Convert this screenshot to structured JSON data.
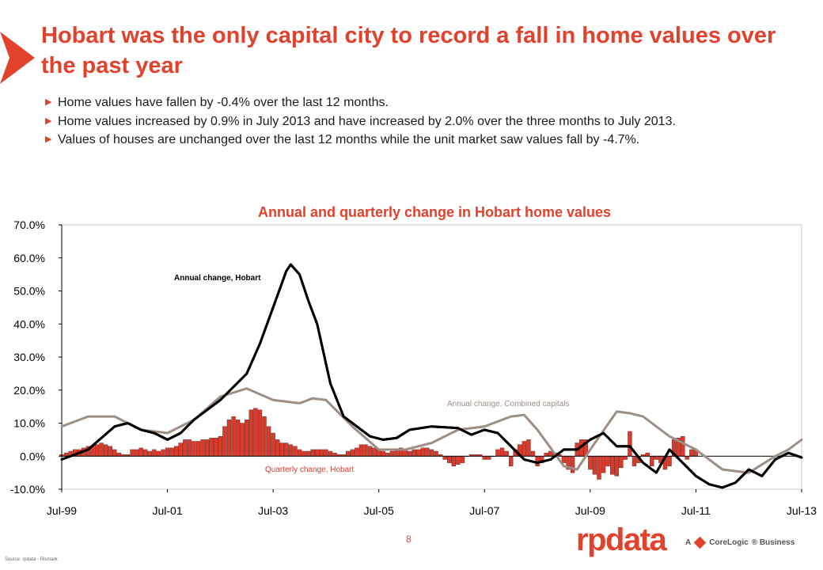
{
  "slide": {
    "title": "Hobart was the only capital city to record a fall in home values over the past year",
    "bullets": [
      "Home values have fallen by -0.4% over the last 12 months.",
      "Home values increased by 0.9% in July 2013 and have increased by 2.0% over the three months to July 2013.",
      "Values of houses are unchanged over the last 12 months while the unit market saw values fall by -4.7%."
    ],
    "bullet_marker": "▶",
    "page_number": "8",
    "source": "Source: rpdata - Rismark",
    "logo_text": "rpdata",
    "logo_tag_prefix": "A",
    "logo_tag_brand": "CoreLogic",
    "logo_tag_suffix": "® Business"
  },
  "colors": {
    "accent": "#e2412c",
    "hobart_annual": "#000000",
    "combined_annual": "#9e8e86",
    "quarterly_bar": "#d93a2b",
    "axis": "#000000"
  },
  "chart_data": {
    "type": "line+bar",
    "title": "Annual and quarterly change in Hobart home values",
    "xlabel": "",
    "ylabel": "",
    "y_unit": "%",
    "ylim": [
      -10,
      70
    ],
    "y_ticks": [
      -10,
      0,
      10,
      20,
      30,
      40,
      50,
      60,
      70
    ],
    "y_tick_labels": [
      "-10.0%",
      "0.0%",
      "10.0%",
      "20.0%",
      "30.0%",
      "40.0%",
      "50.0%",
      "60.0%",
      "70.0%"
    ],
    "x_start": "Jul-99",
    "x_end": "Jul-13",
    "x_tick_labels": [
      "Jul-99",
      "Jul-01",
      "Jul-03",
      "Jul-05",
      "Jul-07",
      "Jul-09",
      "Jul-11",
      "Jul-13"
    ],
    "grid": false,
    "annotations": [
      "Annual change, Hobart",
      "Annual change, Combined capitals",
      "Quarterly change, Hobart"
    ],
    "series": [
      {
        "name": "Annual change, Hobart",
        "kind": "line",
        "color": "#000000",
        "points": [
          [
            "Jul-99",
            -1.0
          ],
          [
            "Jan-00",
            2.0
          ],
          [
            "Jul-00",
            9.0
          ],
          [
            "Oct-00",
            10.0
          ],
          [
            "Jan-01",
            8.0
          ],
          [
            "Apr-01",
            7.0
          ],
          [
            "Jul-01",
            5.0
          ],
          [
            "Oct-01",
            7.0
          ],
          [
            "Jan-02",
            11.0
          ],
          [
            "Jul-02",
            17.0
          ],
          [
            "Jan-03",
            25.0
          ],
          [
            "Apr-03",
            34.0
          ],
          [
            "Jul-03",
            45.0
          ],
          [
            "Oct-03",
            56.0
          ],
          [
            "Nov-03",
            58.0
          ],
          [
            "Jan-04",
            55.0
          ],
          [
            "Mar-04",
            47.0
          ],
          [
            "May-04",
            40.0
          ],
          [
            "Aug-04",
            22.0
          ],
          [
            "Nov-04",
            12.0
          ],
          [
            "Feb-05",
            9.0
          ],
          [
            "May-05",
            6.0
          ],
          [
            "Aug-05",
            5.0
          ],
          [
            "Nov-05",
            5.5
          ],
          [
            "Feb-06",
            8.0
          ],
          [
            "Jul-06",
            9.0
          ],
          [
            "Jan-07",
            8.5
          ],
          [
            "Apr-07",
            6.5
          ],
          [
            "Jul-07",
            8.0
          ],
          [
            "Oct-07",
            7.0
          ],
          [
            "Jan-08",
            3.0
          ],
          [
            "Apr-08",
            -1.0
          ],
          [
            "Jul-08",
            -2.0
          ],
          [
            "Oct-08",
            -1.0
          ],
          [
            "Jan-09",
            2.0
          ],
          [
            "Apr-09",
            2.0
          ],
          [
            "Jul-09",
            5.0
          ],
          [
            "Oct-09",
            7.0
          ],
          [
            "Jan-10",
            3.0
          ],
          [
            "Apr-10",
            3.0
          ],
          [
            "Jul-10",
            -2.0
          ],
          [
            "Oct-10",
            -5.0
          ],
          [
            "Jan-11",
            2.0
          ],
          [
            "Apr-11",
            -2.0
          ],
          [
            "Jul-11",
            -6.0
          ],
          [
            "Oct-11",
            -8.5
          ],
          [
            "Jan-12",
            -9.5
          ],
          [
            "Apr-12",
            -8.0
          ],
          [
            "Jul-12",
            -4.0
          ],
          [
            "Oct-12",
            -6.0
          ],
          [
            "Jan-13",
            -1.0
          ],
          [
            "Apr-13",
            1.0
          ],
          [
            "Jul-13",
            -0.4
          ]
        ]
      },
      {
        "name": "Annual change, Combined capitals",
        "kind": "line",
        "color": "#9e8e86",
        "points": [
          [
            "Jul-99",
            9.0
          ],
          [
            "Jan-00",
            12.0
          ],
          [
            "Jul-00",
            12.0
          ],
          [
            "Jan-01",
            8.0
          ],
          [
            "Jul-01",
            7.0
          ],
          [
            "Jan-02",
            11.0
          ],
          [
            "Jul-02",
            18.0
          ],
          [
            "Jan-03",
            20.5
          ],
          [
            "Jul-03",
            17.0
          ],
          [
            "Jan-04",
            16.0
          ],
          [
            "Apr-04",
            17.5
          ],
          [
            "Jul-04",
            17.0
          ],
          [
            "Jan-05",
            9.0
          ],
          [
            "Jul-05",
            2.0
          ],
          [
            "Jan-06",
            2.0
          ],
          [
            "Jul-06",
            4.0
          ],
          [
            "Jan-07",
            8.0
          ],
          [
            "Jul-07",
            9.0
          ],
          [
            "Jan-08",
            12.0
          ],
          [
            "Apr-08",
            12.5
          ],
          [
            "Jul-08",
            8.0
          ],
          [
            "Jan-09",
            -3.0
          ],
          [
            "Apr-09",
            -4.0
          ],
          [
            "Jul-09",
            2.0
          ],
          [
            "Jan-10",
            13.5
          ],
          [
            "Apr-10",
            13.0
          ],
          [
            "Jul-10",
            12.0
          ],
          [
            "Jan-11",
            6.0
          ],
          [
            "Jul-11",
            2.0
          ],
          [
            "Jan-12",
            -4.0
          ],
          [
            "Jul-12",
            -5.0
          ],
          [
            "Jan-13",
            0.0
          ],
          [
            "Apr-13",
            2.0
          ],
          [
            "Jul-13",
            5.0
          ]
        ]
      },
      {
        "name": "Quarterly change, Hobart",
        "kind": "bar",
        "color": "#d93a2b",
        "x_start": "Jul-99",
        "step": "1 month",
        "values": [
          0.5,
          1.0,
          1.5,
          2.0,
          2.0,
          2.5,
          3.0,
          3.0,
          3.5,
          4.0,
          3.5,
          3.0,
          2.0,
          1.0,
          0.5,
          0.5,
          2.0,
          2.0,
          2.5,
          2.0,
          1.5,
          2.0,
          1.5,
          2.0,
          2.5,
          2.5,
          3.0,
          4.0,
          5.0,
          5.0,
          4.5,
          4.5,
          5.0,
          5.0,
          5.5,
          5.5,
          6.0,
          9.0,
          11.0,
          12.0,
          11.0,
          10.0,
          11.0,
          14.0,
          14.5,
          14.0,
          12.0,
          9.0,
          7.0,
          5.0,
          4.0,
          4.0,
          3.5,
          3.0,
          2.0,
          1.5,
          1.5,
          2.0,
          2.0,
          2.0,
          2.0,
          1.5,
          1.0,
          0.5,
          0.5,
          1.5,
          2.0,
          2.5,
          3.5,
          3.5,
          3.0,
          2.5,
          2.0,
          1.5,
          1.0,
          1.5,
          2.0,
          2.5,
          2.0,
          1.5,
          2.0,
          2.0,
          2.5,
          2.5,
          2.0,
          1.5,
          0.5,
          -1.0,
          -2.0,
          -3.0,
          -2.5,
          -2.0,
          0.0,
          0.5,
          0.5,
          0.5,
          -1.0,
          -1.0,
          0.0,
          2.0,
          2.5,
          1.5,
          -3.0,
          2.0,
          3.5,
          4.5,
          5.0,
          1.5,
          -3.0,
          -2.0,
          1.0,
          1.5,
          1.0,
          0.5,
          -2.0,
          -4.0,
          -5.0,
          4.0,
          5.0,
          5.0,
          -4.0,
          -5.5,
          -7.0,
          -5.0,
          -3.0,
          -5.5,
          -6.0,
          -3.5,
          -1.0,
          7.5,
          -3.0,
          -2.0,
          0.5,
          1.0,
          -3.0,
          -1.0,
          -2.0,
          -4.0,
          -3.0,
          5.0,
          5.5,
          6.0,
          -1.0,
          2.0,
          2.0
        ]
      }
    ]
  }
}
